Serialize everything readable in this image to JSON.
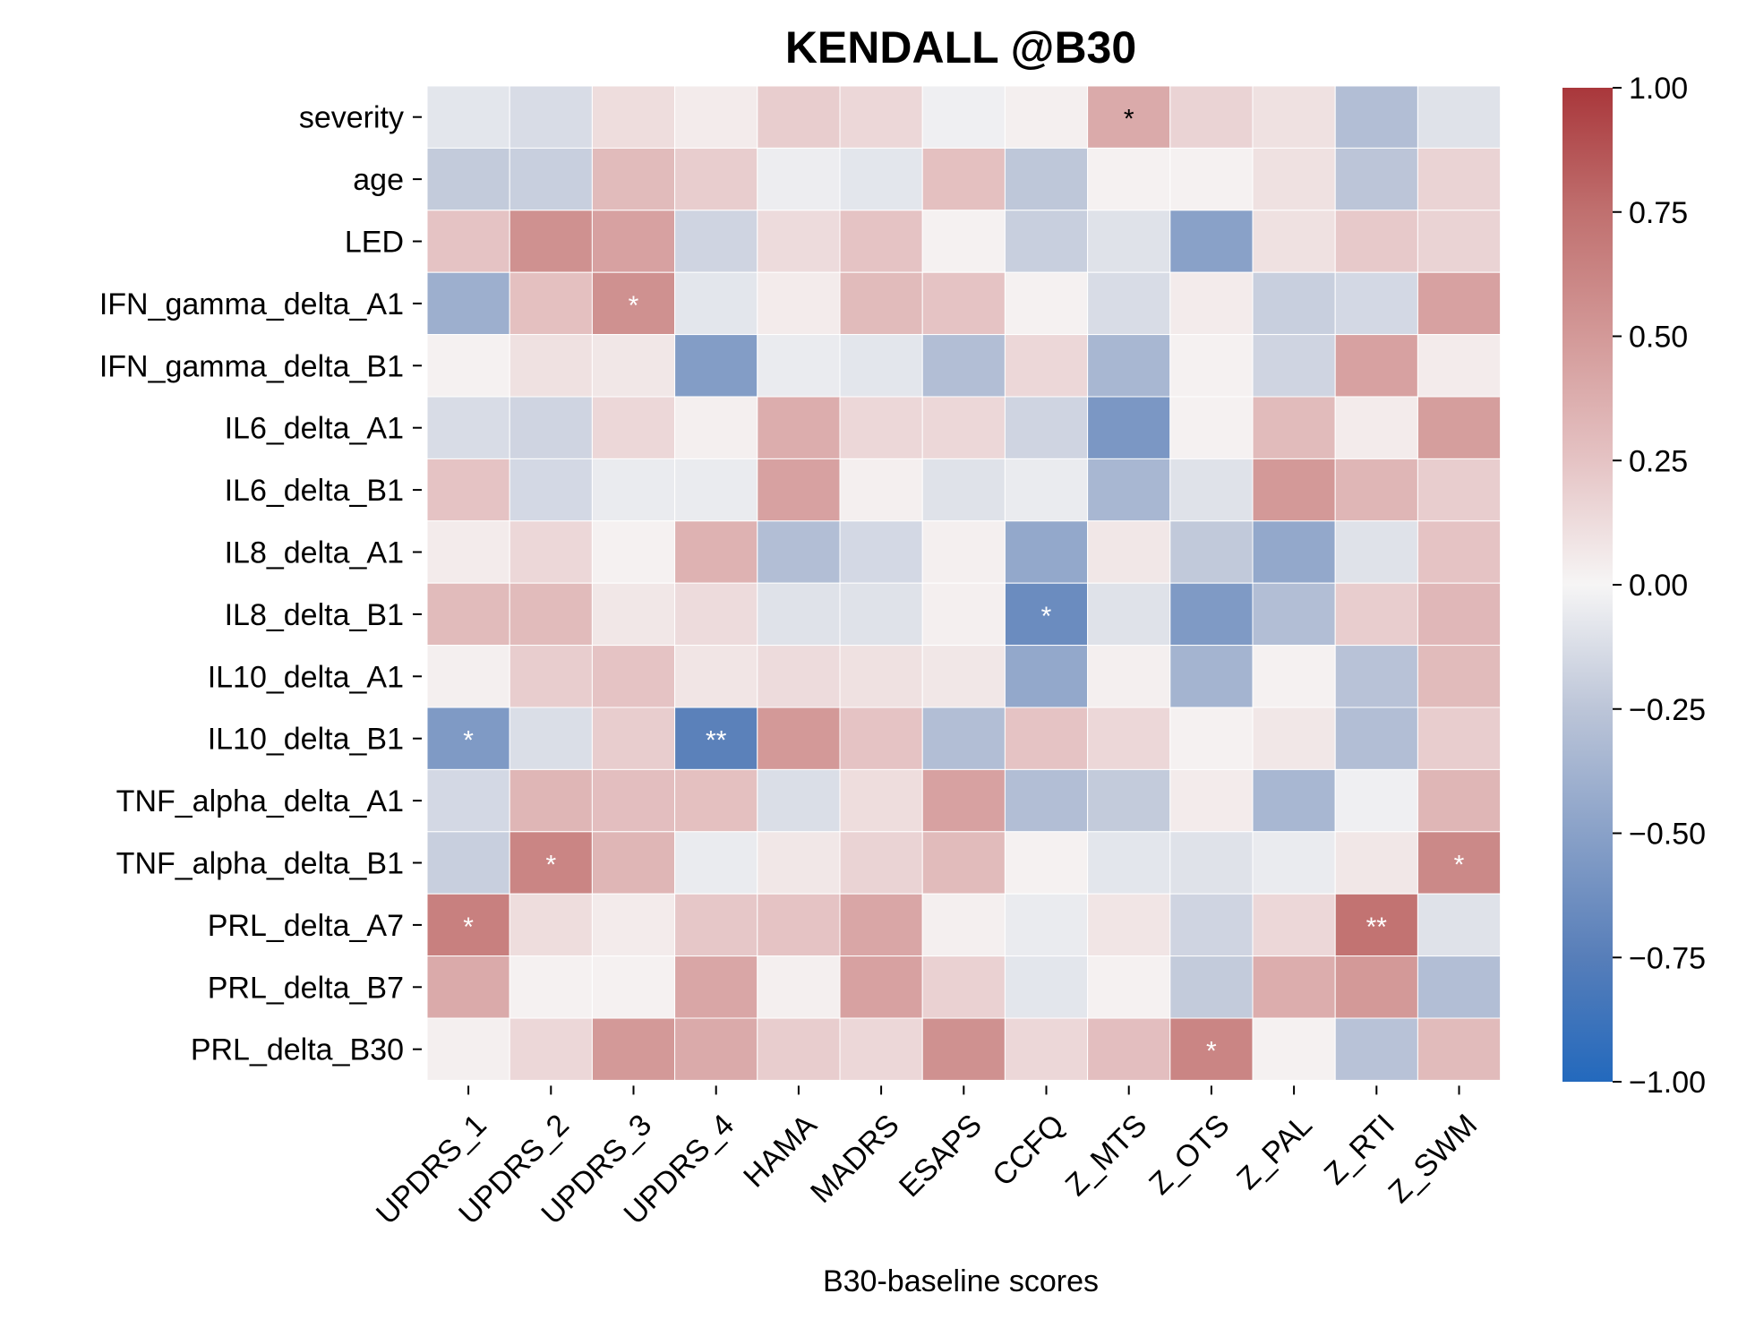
{
  "chart_data": {
    "type": "heatmap",
    "title": "KENDALL @B30",
    "xlabel": "B30-baseline scores",
    "ylabel": "",
    "columns": [
      "UPDRS_1",
      "UPDRS_2",
      "UPDRS_3",
      "UPDRS_4",
      "HAMA",
      "MADRS",
      "ESAPS",
      "CCFQ",
      "Z_MTS",
      "Z_OTS",
      "Z_PAL",
      "Z_RTI",
      "Z_SWM"
    ],
    "rows": [
      "severity",
      "age",
      "LED",
      "IFN_gamma_delta_A1",
      "IFN_gamma_delta_B1",
      "IL6_delta_A1",
      "IL6_delta_B1",
      "IL8_delta_A1",
      "IL8_delta_B1",
      "IL10_delta_A1",
      "IL10_delta_B1",
      "TNF_alpha_delta_A1",
      "TNF_alpha_delta_B1",
      "PRL_delta_A7",
      "PRL_delta_B7",
      "PRL_delta_B30"
    ],
    "values": [
      [
        -0.08,
        -0.13,
        0.12,
        0.05,
        0.2,
        0.15,
        -0.03,
        0.03,
        0.4,
        0.17,
        0.1,
        -0.3,
        -0.1
      ],
      [
        -0.22,
        -0.2,
        0.3,
        0.2,
        -0.04,
        -0.08,
        0.27,
        -0.24,
        0.02,
        0.02,
        0.1,
        -0.25,
        0.17
      ],
      [
        0.25,
        0.55,
        0.45,
        -0.17,
        0.13,
        0.25,
        0.02,
        -0.2,
        -0.1,
        -0.5,
        0.1,
        0.22,
        0.17
      ],
      [
        -0.4,
        0.27,
        0.55,
        -0.08,
        0.05,
        0.3,
        0.25,
        0.02,
        -0.13,
        0.05,
        -0.2,
        -0.15,
        0.45
      ],
      [
        0.02,
        0.1,
        0.07,
        -0.53,
        -0.05,
        -0.08,
        -0.3,
        0.15,
        -0.35,
        0.02,
        -0.17,
        0.45,
        0.05
      ],
      [
        -0.13,
        -0.17,
        0.15,
        0.03,
        0.38,
        0.15,
        0.15,
        -0.17,
        -0.57,
        0.02,
        0.3,
        0.05,
        0.47
      ],
      [
        0.25,
        -0.15,
        -0.05,
        -0.05,
        0.45,
        0.03,
        -0.1,
        -0.05,
        -0.35,
        -0.1,
        0.5,
        0.33,
        0.2
      ],
      [
        0.05,
        0.15,
        0.02,
        0.35,
        -0.3,
        -0.15,
        0.03,
        -0.45,
        0.07,
        -0.23,
        -0.45,
        -0.1,
        0.25
      ],
      [
        0.3,
        0.3,
        0.07,
        0.13,
        -0.1,
        -0.1,
        0.03,
        -0.65,
        -0.1,
        -0.55,
        -0.3,
        0.2,
        0.32
      ],
      [
        0.03,
        0.2,
        0.25,
        0.08,
        0.13,
        0.1,
        0.07,
        -0.45,
        0.03,
        -0.37,
        0.02,
        -0.27,
        0.3
      ],
      [
        -0.55,
        -0.12,
        0.2,
        -0.73,
        0.5,
        0.25,
        -0.3,
        0.25,
        0.15,
        0.02,
        0.07,
        -0.3,
        0.2
      ],
      [
        -0.15,
        0.33,
        0.28,
        0.27,
        -0.12,
        0.12,
        0.45,
        -0.3,
        -0.22,
        0.05,
        -0.35,
        -0.03,
        0.33
      ],
      [
        -0.2,
        0.62,
        0.33,
        -0.05,
        0.07,
        0.17,
        0.3,
        0.02,
        -0.08,
        -0.1,
        -0.05,
        0.07,
        0.6
      ],
      [
        0.65,
        0.12,
        0.05,
        0.23,
        0.25,
        0.42,
        0.03,
        -0.05,
        0.08,
        -0.17,
        0.15,
        0.73,
        -0.1
      ],
      [
        0.4,
        0.02,
        0.02,
        0.42,
        0.03,
        0.45,
        0.18,
        -0.08,
        0.02,
        -0.22,
        0.38,
        0.5,
        -0.3
      ],
      [
        0.03,
        0.15,
        0.5,
        0.4,
        0.2,
        0.15,
        0.55,
        0.15,
        0.28,
        0.62,
        0.02,
        -0.27,
        0.3
      ]
    ],
    "annotations": [
      {
        "row": "severity",
        "col": "Z_MTS",
        "text": "*"
      },
      {
        "row": "IFN_gamma_delta_A1",
        "col": "UPDRS_3",
        "text": "*"
      },
      {
        "row": "IL8_delta_B1",
        "col": "CCFQ",
        "text": "*"
      },
      {
        "row": "IL10_delta_B1",
        "col": "UPDRS_1",
        "text": "*"
      },
      {
        "row": "IL10_delta_B1",
        "col": "UPDRS_4",
        "text": "**"
      },
      {
        "row": "TNF_alpha_delta_B1",
        "col": "UPDRS_2",
        "text": "*"
      },
      {
        "row": "TNF_alpha_delta_B1",
        "col": "Z_SWM",
        "text": "*"
      },
      {
        "row": "PRL_delta_A7",
        "col": "UPDRS_1",
        "text": "*"
      },
      {
        "row": "PRL_delta_A7",
        "col": "Z_RTI",
        "text": "**"
      },
      {
        "row": "PRL_delta_B30",
        "col": "Z_OTS",
        "text": "*"
      }
    ],
    "colorbar": {
      "min": -1.0,
      "max": 1.0,
      "ticks": [
        "1.00",
        "0.75",
        "0.50",
        "0.25",
        "0.00",
        "−0.25",
        "−0.50",
        "−0.75",
        "−1.00"
      ],
      "tick_values": [
        1.0,
        0.75,
        0.5,
        0.25,
        0.0,
        -0.25,
        -0.5,
        -0.75,
        -1.0
      ],
      "colormap": "vlag",
      "low_color": "#2369bd",
      "mid_color": "#ffffff",
      "high_color": "#a9373b"
    }
  }
}
